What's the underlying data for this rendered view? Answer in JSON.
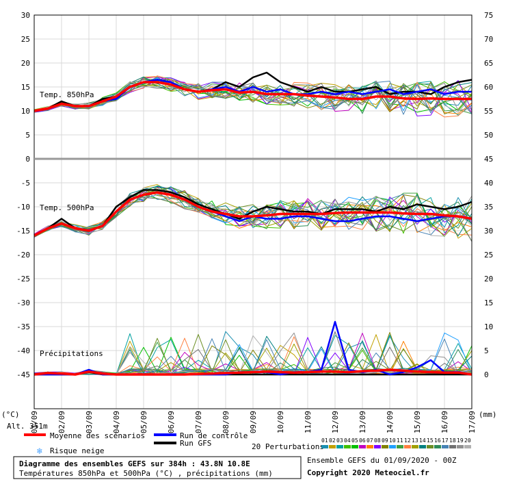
{
  "chart_data": {
    "type": "line",
    "title": "Diagramme des ensembles GEFS sur 384h : 43.8N 10.8E",
    "subtitle": "Températures 850hPa et 500hPa (°C) , précipitations (mm)",
    "left_axis_ticks": [
      30,
      25,
      20,
      15,
      10,
      5,
      0,
      -5,
      -10,
      -15,
      -20,
      -25,
      -30,
      -35,
      -40,
      -45
    ],
    "right_axis_ticks": [
      "75",
      "70",
      "65",
      "60",
      "55",
      "50",
      "45",
      "40",
      "35",
      "30",
      "25",
      "20",
      "15",
      "10",
      "5",
      "0"
    ],
    "left_unit": "(°C)",
    "right_unit": "(mm)",
    "x_dates": [
      "01/09",
      "02/09",
      "03/09",
      "04/09",
      "05/09",
      "06/09",
      "07/09",
      "08/09",
      "09/09",
      "10/09",
      "11/09",
      "12/09",
      "13/09",
      "14/09",
      "15/09",
      "16/09",
      "17/09"
    ],
    "panel_labels": [
      "Temp. 850hPa",
      "Temp. 500hPa",
      "Précipitations"
    ],
    "altitude": "Alt. 351m",
    "legend": {
      "mean": "Moyenne des scénarios",
      "control": "Run de contrôle",
      "gfs": "Run GFS",
      "snow": "Risque neige",
      "perturbations": "20 Perturbations",
      "perturbation_ids": [
        "01",
        "02",
        "03",
        "04",
        "05",
        "06",
        "07",
        "08",
        "09",
        "10",
        "11",
        "12",
        "13",
        "14",
        "15",
        "16",
        "17",
        "18",
        "19",
        "20"
      ]
    },
    "colors": {
      "mean": "#ff0000",
      "control": "#0000ff",
      "gfs": "#000000",
      "snow": "#4aa3ff",
      "perturbations": [
        "#1a8fb0",
        "#c0a000",
        "#00a0a0",
        "#40c000",
        "#00c000",
        "#c000c0",
        "#ff8000",
        "#8000ff",
        "#808000",
        "#20a0ff",
        "#40a040",
        "#ff8040",
        "#a0a000",
        "#008080",
        "#6b8e23",
        "#2e8b57",
        "#4682b4",
        "#707070",
        "#909090",
        "#b0b0b0"
      ]
    },
    "series": [
      {
        "name": "Moyenne des scénarios",
        "t850": [
          10,
          10.5,
          11.5,
          11,
          11,
          12,
          13,
          15,
          16,
          16,
          15.5,
          14.5,
          14,
          14.3,
          14.5,
          13.8,
          14,
          13.5,
          13.5,
          13.5,
          13.2,
          13,
          12.8,
          12.5,
          12.5,
          13,
          13,
          12.6,
          12.5,
          12.6,
          12.5,
          12.5,
          12.5
        ],
        "t500": [
          -16,
          -14.5,
          -13.5,
          -14.5,
          -15,
          -14,
          -11,
          -8.5,
          -7.5,
          -7,
          -7.5,
          -8.5,
          -10,
          -11,
          -11.5,
          -12,
          -12,
          -11.8,
          -11.5,
          -11.5,
          -11.5,
          -11.5,
          -11.3,
          -11.2,
          -11.2,
          -11.2,
          -11.2,
          -11.4,
          -11.5,
          -11.5,
          -11.8,
          -12,
          -12.5
        ],
        "precip": [
          0,
          0.3,
          0.2,
          0,
          0.6,
          0.2,
          0,
          0,
          0,
          0,
          0,
          0,
          0.1,
          0.2,
          0.3,
          0.4,
          0.5,
          0.6,
          0.5,
          0.4,
          0.5,
          0.6,
          0.6,
          0.5,
          0.7,
          0.8,
          1,
          0.8,
          0.6,
          0.5,
          0.4,
          0.4,
          0
        ]
      },
      {
        "name": "Run de contrôle",
        "t850": [
          10,
          10.5,
          11.5,
          11,
          11,
          12,
          12.5,
          15,
          16,
          16.5,
          16,
          14.5,
          14,
          14.5,
          15,
          14,
          15,
          14,
          14.5,
          13.5,
          13.5,
          14,
          13.5,
          14,
          13.5,
          14,
          14.5,
          13.5,
          14,
          14.5,
          13.5,
          14,
          14
        ],
        "t500": [
          -16,
          -14.5,
          -13.5,
          -14.5,
          -15,
          -14,
          -11,
          -8.5,
          -7.5,
          -7,
          -7.5,
          -8.5,
          -10,
          -11,
          -12,
          -13,
          -12,
          -12.5,
          -12.5,
          -12,
          -12,
          -12.5,
          -13,
          -13,
          -12.5,
          -12,
          -12,
          -12.5,
          -13,
          -12.5,
          -12,
          -12,
          -12.5
        ],
        "precip": [
          0,
          0,
          0,
          0,
          1,
          0,
          0,
          0,
          0,
          0,
          0,
          0,
          0,
          0,
          0,
          0.5,
          0.5,
          0.5,
          0,
          0.5,
          0.5,
          1,
          11,
          1,
          0.5,
          1,
          0,
          0.5,
          1.5,
          3,
          0.5,
          0.5,
          0
        ]
      },
      {
        "name": "Run GFS",
        "t850": [
          10,
          10.5,
          12,
          11,
          11,
          12.5,
          13,
          15,
          16,
          16.5,
          16,
          14.5,
          14,
          14.5,
          16,
          15,
          17,
          18,
          16,
          15,
          14,
          15,
          14,
          14,
          14.5,
          15,
          13.5,
          14,
          14,
          13.5,
          15,
          16,
          16.5
        ],
        "t500": [
          -16,
          -14.5,
          -12.5,
          -14.5,
          -15,
          -14,
          -10,
          -8,
          -6.5,
          -6.5,
          -7,
          -8,
          -9.5,
          -10.5,
          -11.5,
          -12.5,
          -11,
          -10,
          -10.5,
          -11,
          -11,
          -11.5,
          -10.5,
          -10.5,
          -10.5,
          -11,
          -10,
          -10.5,
          -9.5,
          -10,
          -10.5,
          -10,
          -9
        ],
        "precip": [
          0,
          0,
          0,
          0,
          0.5,
          0,
          0,
          0,
          0,
          0,
          0,
          0,
          0,
          0,
          0,
          0,
          0,
          0,
          0,
          0,
          0,
          0,
          0,
          0,
          0,
          0,
          0,
          0,
          0,
          0,
          0,
          0,
          0
        ]
      }
    ]
  }
}
